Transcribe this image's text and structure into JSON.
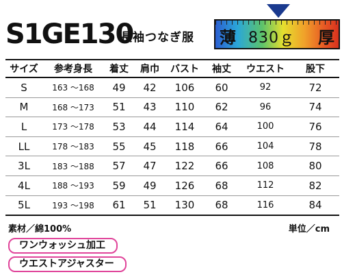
{
  "header": {
    "model": "S1GE130",
    "product_type": "長袖つなぎ服",
    "gauge_thin": "薄",
    "gauge_weight": "830ｇ",
    "gauge_thick": "厚"
  },
  "table": {
    "columns": [
      "サイズ",
      "参考身長",
      "着丈",
      "肩巾",
      "バスト",
      "袖丈",
      "ウエスト",
      "股下"
    ],
    "rows": [
      [
        "S",
        "163 〜168",
        "49",
        "42",
        "106",
        "60",
        "92",
        "72"
      ],
      [
        "M",
        "168 〜173",
        "51",
        "43",
        "110",
        "62",
        "96",
        "74"
      ],
      [
        "L",
        "173 〜178",
        "53",
        "44",
        "114",
        "64",
        "100",
        "76"
      ],
      [
        "LL",
        "178 〜183",
        "55",
        "45",
        "118",
        "66",
        "104",
        "78"
      ],
      [
        "3L",
        "183 〜188",
        "57",
        "47",
        "122",
        "66",
        "108",
        "80"
      ],
      [
        "4L",
        "188 〜193",
        "59",
        "49",
        "126",
        "68",
        "112",
        "82"
      ],
      [
        "5L",
        "193 〜198",
        "61",
        "51",
        "130",
        "68",
        "116",
        "84"
      ]
    ]
  },
  "footer": {
    "material": "素材／綿100%",
    "unit": "単位／cm",
    "features": [
      "ワンウォッシュ加工",
      "ウエストアジャスター"
    ]
  },
  "colors": {
    "feature_border": "#e0449a",
    "marker": "#1a3a8f"
  }
}
